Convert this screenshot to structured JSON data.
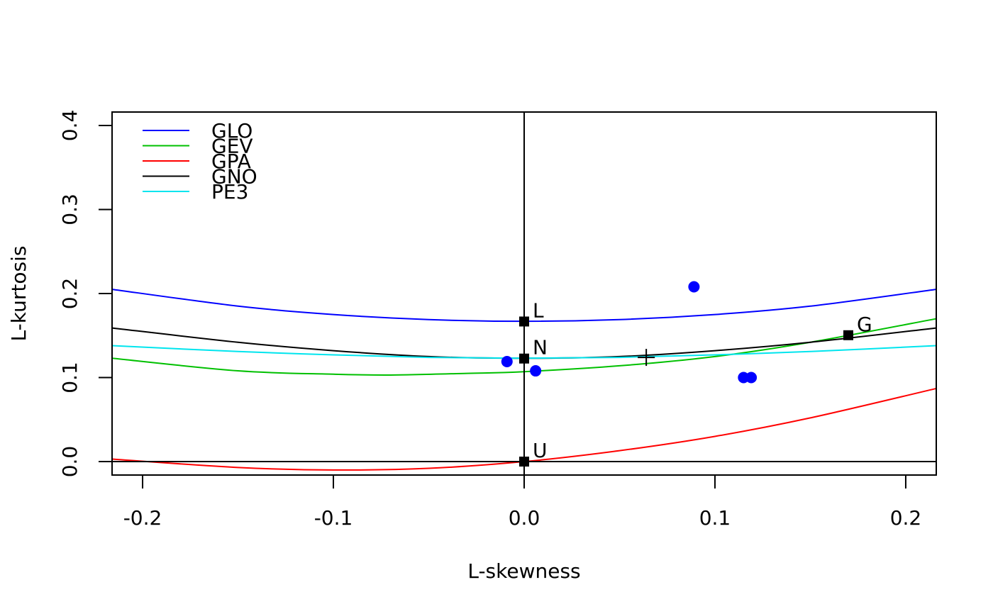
{
  "chart_data": {
    "type": "line",
    "title": "",
    "xlabel": "L-skewness",
    "ylabel": "L-kurtosis",
    "xlim": [
      -0.216,
      0.216
    ],
    "ylim": [
      -0.016,
      0.416
    ],
    "x_ticks": [
      -0.2,
      -0.1,
      0.0,
      0.1,
      0.2
    ],
    "x_tick_labels": [
      "-0.2",
      "-0.1",
      "0.0",
      "0.1",
      "0.2"
    ],
    "y_ticks": [
      0.0,
      0.1,
      0.2,
      0.3,
      0.4
    ],
    "y_tick_labels": [
      "0.0",
      "0.1",
      "0.2",
      "0.3",
      "0.4"
    ],
    "grid": false,
    "legend_position": "top-left",
    "series": [
      {
        "name": "GLO",
        "color": "#0000ff",
        "points": [
          [
            -0.216,
            0.205
          ],
          [
            -0.15,
            0.185
          ],
          [
            -0.1,
            0.175
          ],
          [
            -0.05,
            0.169
          ],
          [
            0.0,
            0.167
          ],
          [
            0.05,
            0.169
          ],
          [
            0.1,
            0.175
          ],
          [
            0.15,
            0.185
          ],
          [
            0.216,
            0.205
          ]
        ]
      },
      {
        "name": "GEV",
        "color": "#00c000",
        "points": [
          [
            -0.216,
            0.123
          ],
          [
            -0.15,
            0.108
          ],
          [
            -0.1,
            0.104
          ],
          [
            -0.07,
            0.103
          ],
          [
            -0.03,
            0.105
          ],
          [
            0.0,
            0.107
          ],
          [
            0.05,
            0.114
          ],
          [
            0.1,
            0.125
          ],
          [
            0.15,
            0.142
          ],
          [
            0.216,
            0.17
          ]
        ]
      },
      {
        "name": "GPA",
        "color": "#ff0000",
        "points": [
          [
            -0.216,
            0.003
          ],
          [
            -0.15,
            -0.007
          ],
          [
            -0.1,
            -0.01
          ],
          [
            -0.05,
            -0.008
          ],
          [
            0.0,
            0.0
          ],
          [
            0.05,
            0.013
          ],
          [
            0.1,
            0.03
          ],
          [
            0.15,
            0.052
          ],
          [
            0.216,
            0.087
          ]
        ]
      },
      {
        "name": "GNO",
        "color": "#000000",
        "points": [
          [
            -0.216,
            0.159
          ],
          [
            -0.15,
            0.142
          ],
          [
            -0.1,
            0.132
          ],
          [
            -0.05,
            0.125
          ],
          [
            0.0,
            0.123
          ],
          [
            0.05,
            0.125
          ],
          [
            0.1,
            0.132
          ],
          [
            0.15,
            0.142
          ],
          [
            0.216,
            0.159
          ]
        ]
      },
      {
        "name": "PE3",
        "color": "#00e5ee",
        "points": [
          [
            -0.216,
            0.138
          ],
          [
            -0.15,
            0.131
          ],
          [
            -0.1,
            0.127
          ],
          [
            -0.05,
            0.124
          ],
          [
            0.0,
            0.123
          ],
          [
            0.05,
            0.124
          ],
          [
            0.1,
            0.127
          ],
          [
            0.15,
            0.131
          ],
          [
            0.216,
            0.138
          ]
        ]
      }
    ],
    "reference_lines": [
      {
        "orientation": "horizontal",
        "value": 0.0,
        "color": "#000000"
      },
      {
        "orientation": "vertical",
        "value": 0.0,
        "color": "#000000"
      }
    ],
    "sample_points": {
      "color": "#0000ff",
      "points": [
        [
          -0.009,
          0.119
        ],
        [
          0.006,
          0.108
        ],
        [
          0.089,
          0.208
        ],
        [
          0.115,
          0.1
        ],
        [
          0.119,
          0.1
        ]
      ]
    },
    "special_points": [
      {
        "label": "L",
        "x": 0.0,
        "y": 0.1667
      },
      {
        "label": "N",
        "x": 0.0,
        "y": 0.1226
      },
      {
        "label": "U",
        "x": 0.0,
        "y": 0.0
      },
      {
        "label": "G",
        "x": 0.1699,
        "y": 0.1504
      }
    ],
    "mean_marker": {
      "x": 0.064,
      "y": 0.124
    }
  }
}
